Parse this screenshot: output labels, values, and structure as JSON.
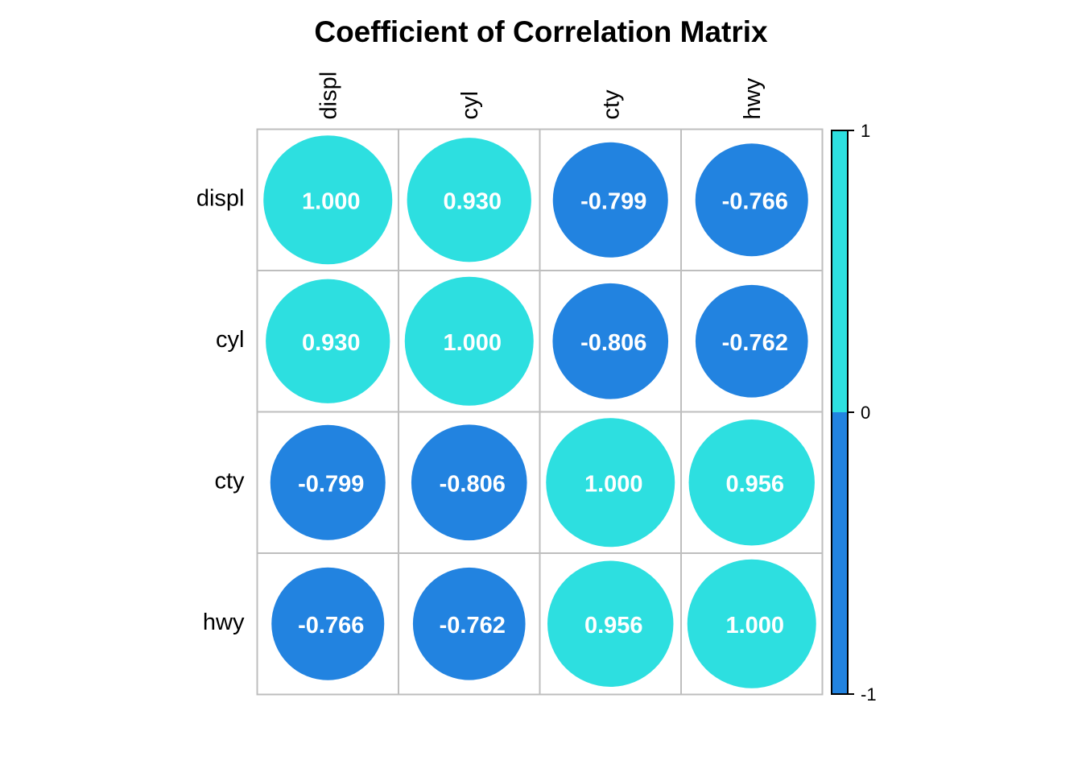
{
  "chart_data": {
    "type": "heatmap",
    "title": "Coefficient of Correlation Matrix",
    "variables": [
      "displ",
      "cyl",
      "cty",
      "hwy"
    ],
    "values": [
      [
        1.0,
        0.93,
        -0.799,
        -0.766
      ],
      [
        0.93,
        1.0,
        -0.806,
        -0.762
      ],
      [
        -0.799,
        -0.806,
        1.0,
        0.956
      ],
      [
        -0.766,
        -0.762,
        0.956,
        1.0
      ]
    ],
    "value_labels": [
      [
        "1.000",
        "0.930",
        "-0.799",
        "-0.766"
      ],
      [
        "0.930",
        "1.000",
        "-0.806",
        "-0.762"
      ],
      [
        "-0.799",
        "-0.806",
        "1.000",
        "0.956"
      ],
      [
        "-0.766",
        "-0.762",
        "0.956",
        "1.000"
      ]
    ],
    "glyph": "circle",
    "circle_size_scales_with": "absolute value",
    "colors": {
      "positive": "#2DDFE0",
      "negative": "#2283E0",
      "grid": "#BEBEBE",
      "value_label": "#FFFFFF",
      "text": "#000000"
    },
    "colorbar": {
      "range": [
        -1,
        1
      ],
      "ticks": [
        "1",
        "0",
        "-1"
      ],
      "placement": "right"
    },
    "grid": true
  }
}
